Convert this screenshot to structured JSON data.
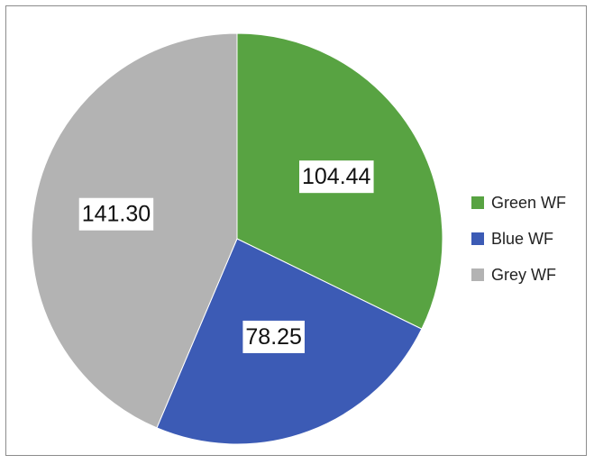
{
  "chart_data": {
    "type": "pie",
    "title": "",
    "categories": [
      "Green WF",
      "Blue WF",
      "Grey WF"
    ],
    "values": [
      104.44,
      78.25,
      141.3
    ],
    "value_labels": [
      "104.44",
      "78.25",
      "141.30"
    ],
    "colors": [
      "#58a342",
      "#3c5bb5",
      "#b3b3b3"
    ],
    "start_angle_deg": 0,
    "direction": "clockwise",
    "legend": {
      "position": "right",
      "items": [
        {
          "label": "Green WF",
          "color": "#58a342"
        },
        {
          "label": "Blue WF",
          "color": "#3c5bb5"
        },
        {
          "label": "Grey WF",
          "color": "#b3b3b3"
        }
      ]
    }
  }
}
